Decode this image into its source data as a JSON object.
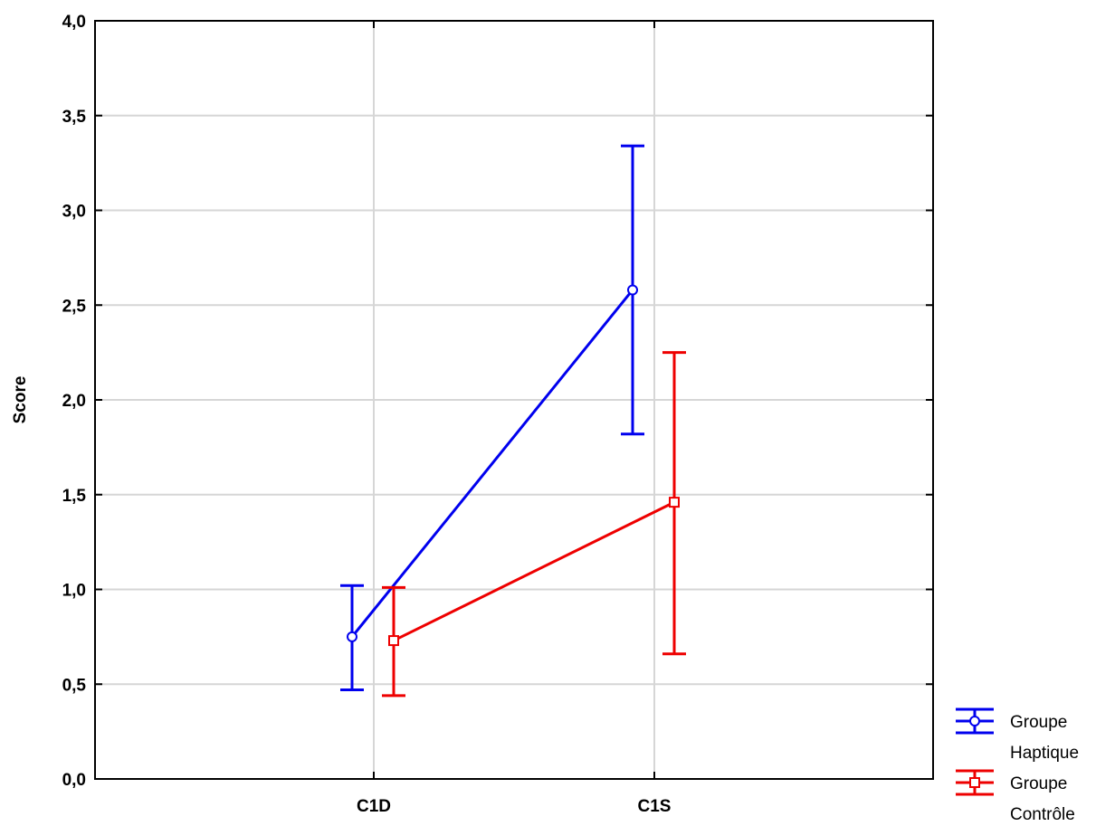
{
  "chart_data": {
    "type": "line",
    "title": "",
    "xlabel": "",
    "ylabel": "Score",
    "categories": [
      "C1D",
      "C1S"
    ],
    "ylim": [
      0,
      4
    ],
    "yticks": [
      "0,0",
      "0,5",
      "1,0",
      "1,5",
      "2,0",
      "2,5",
      "3,0",
      "3,5",
      "4,0"
    ],
    "grid": true,
    "legend_position": "bottom-right, outside plot",
    "error_bars": true,
    "series": [
      {
        "name": "Groupe Haptique",
        "legend_lines": [
          "Groupe",
          "Haptique"
        ],
        "color": "#0000ee",
        "marker": "circle",
        "values": [
          0.75,
          2.58
        ],
        "lower": [
          0.47,
          1.82
        ],
        "upper": [
          1.02,
          3.34
        ]
      },
      {
        "name": "Groupe Contrôle",
        "legend_lines": [
          "Groupe",
          "Contrôle"
        ],
        "color": "#ee0000",
        "marker": "square",
        "values": [
          0.73,
          1.46
        ],
        "lower": [
          0.44,
          0.66
        ],
        "upper": [
          1.01,
          2.25
        ]
      }
    ]
  }
}
